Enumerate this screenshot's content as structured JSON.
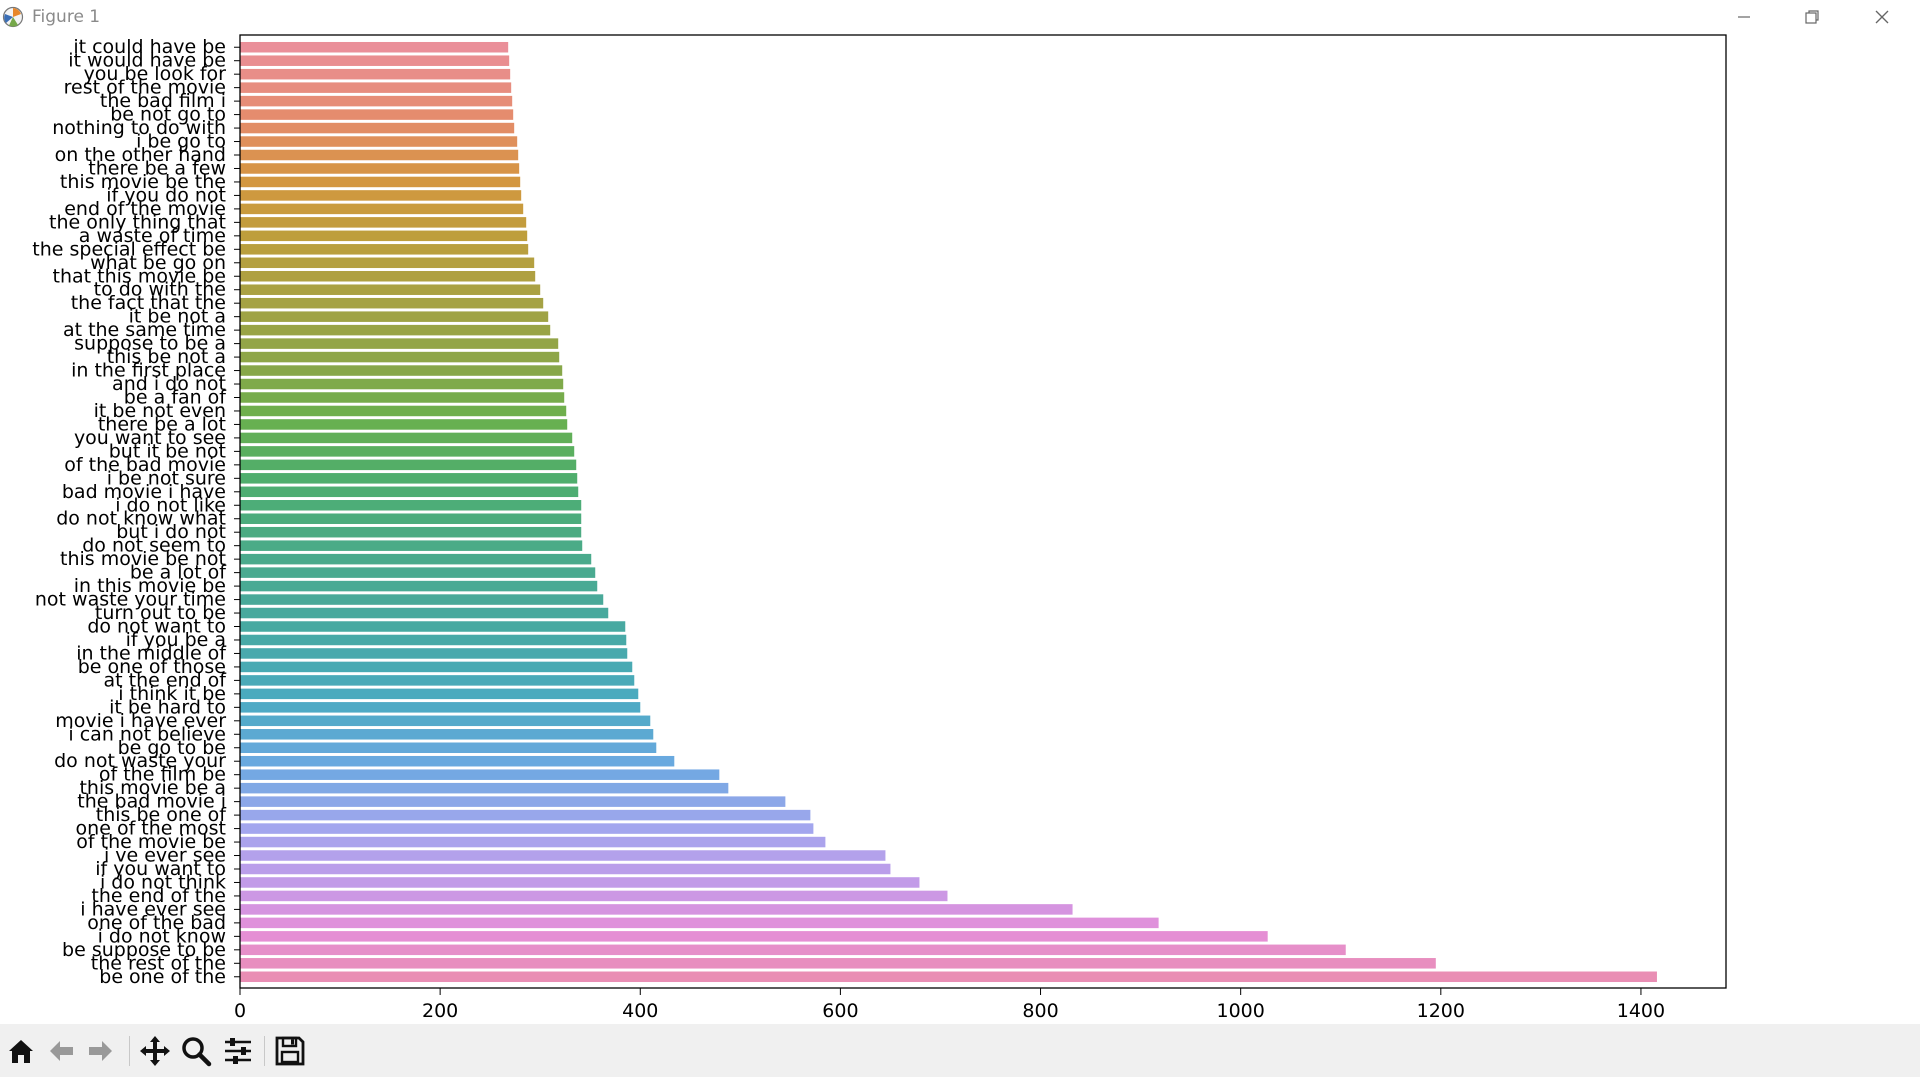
{
  "window": {
    "title": "Figure 1"
  },
  "toolbar": {
    "tools": [
      "home-icon",
      "back-arrow-icon",
      "forward-arrow-icon",
      "pan-icon",
      "zoom-icon",
      "configure-subplots-icon",
      "save-icon"
    ]
  },
  "chart_data": {
    "type": "bar",
    "orientation": "horizontal",
    "title": "",
    "xlabel": "",
    "ylabel": "",
    "xlim": [
      0,
      1485
    ],
    "xticks": [
      0,
      200,
      400,
      600,
      800,
      1000,
      1200,
      1400
    ],
    "grid": false,
    "categories": [
      "it could have be",
      "it would have be",
      "you be look for",
      "rest of the movie",
      "the bad film i",
      "be not go to",
      "nothing to do with",
      "i be go to",
      "on the other hand",
      "there be a few",
      "this movie be the",
      "if you do not",
      "end of the movie",
      "the only thing that",
      "a waste of time",
      "the special effect be",
      "what be go on",
      "that this movie be",
      "to do with the",
      "the fact that the",
      "it be not a",
      "at the same time",
      "suppose to be a",
      "this be not a",
      "in the first place",
      "and i do not",
      "be a fan of",
      "it be not even",
      "there be a lot",
      "you want to see",
      "but it be not",
      "of the bad movie",
      "i be not sure",
      "bad movie i have",
      "i do not like",
      "do not know what",
      "but i do not",
      "do not seem to",
      "this movie be not",
      "be a lot of",
      "in this movie be",
      "not waste your time",
      "turn out to be",
      "do not want to",
      "if you be a",
      "in the middle of",
      "be one of those",
      "at the end of",
      "i think it be",
      "it be hard to",
      "movie i have ever",
      "i can not believe",
      "be go to be",
      "do not waste your",
      "of the film be",
      "this movie be a",
      "the bad movie i",
      "this be one of",
      "one of the most",
      "of the movie be",
      "i ve ever see",
      "if you want to",
      "i do not think",
      "the end of the",
      "i have ever see",
      "one of the bad",
      "i do not know",
      "be suppose to be",
      "the rest of the",
      "be one of the"
    ],
    "values": [
      268,
      269,
      270,
      271,
      272,
      273,
      274,
      277,
      278,
      279,
      280,
      281,
      283,
      286,
      287,
      288,
      294,
      295,
      300,
      303,
      308,
      310,
      318,
      319,
      322,
      323,
      324,
      326,
      327,
      332,
      334,
      336,
      337,
      338,
      341,
      341,
      341,
      342,
      351,
      355,
      357,
      363,
      368,
      385,
      386,
      387,
      392,
      394,
      398,
      400,
      410,
      413,
      416,
      434,
      479,
      488,
      545,
      570,
      573,
      585,
      645,
      650,
      679,
      707,
      832,
      918,
      1027,
      1105,
      1195,
      1416
    ]
  }
}
